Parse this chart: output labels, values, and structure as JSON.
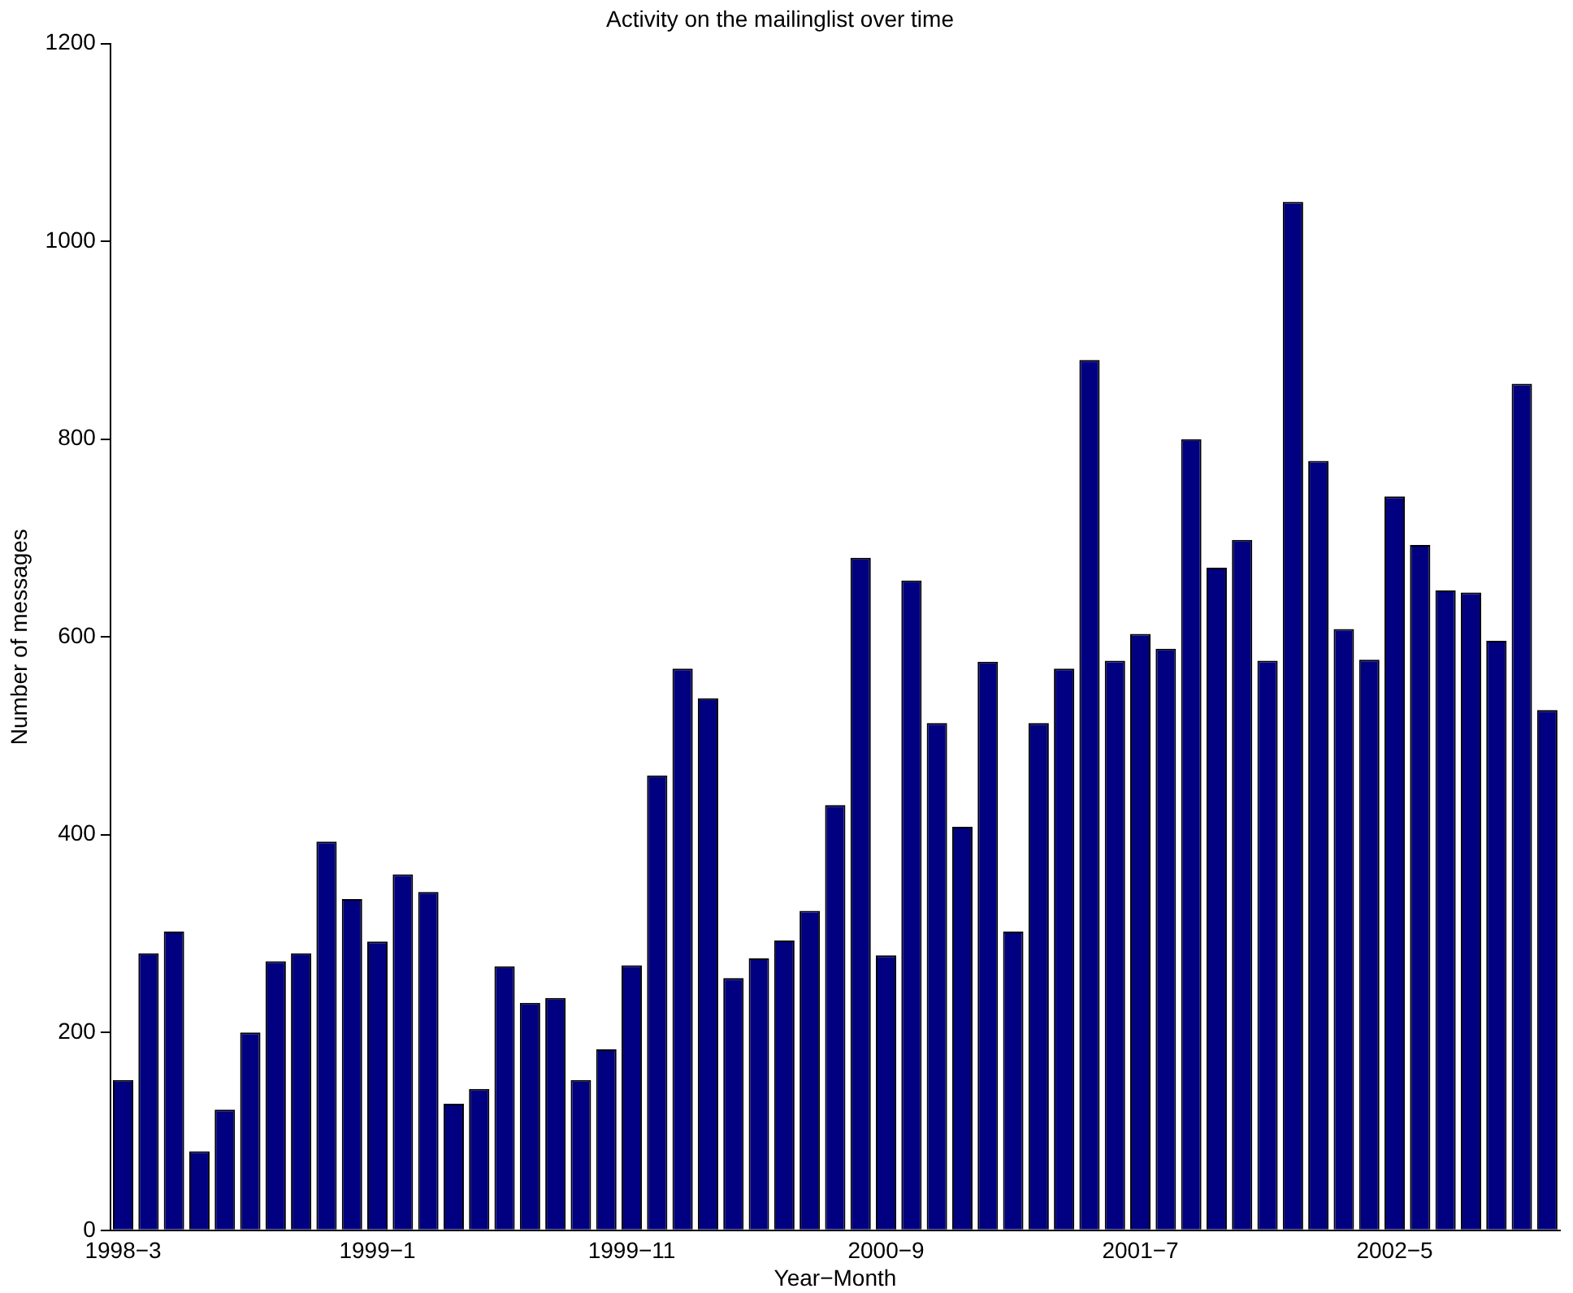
{
  "chart_data": {
    "type": "bar",
    "title": "Activity on the mailinglist over time",
    "xlabel": "Year−Month",
    "ylabel": "Number of messages",
    "categories": [
      "1998−3",
      null,
      null,
      null,
      null,
      null,
      null,
      null,
      null,
      null,
      "1999−1",
      null,
      null,
      null,
      null,
      null,
      null,
      null,
      null,
      null,
      "1999−11",
      null,
      null,
      null,
      null,
      null,
      null,
      null,
      null,
      null,
      "2000−9",
      null,
      null,
      null,
      null,
      null,
      null,
      null,
      null,
      null,
      "2001−7",
      null,
      null,
      null,
      null,
      null,
      null,
      null,
      null,
      null,
      "2002−5",
      null,
      null,
      null,
      null,
      null,
      null
    ],
    "values": [
      152,
      280,
      302,
      80,
      122,
      200,
      272,
      280,
      393,
      335,
      292,
      360,
      342,
      128,
      143,
      267,
      230,
      235,
      152,
      183,
      268,
      460,
      568,
      538,
      255,
      275,
      293,
      323,
      430,
      680,
      278,
      657,
      513,
      408,
      575,
      302,
      513,
      568,
      880,
      576,
      603,
      588,
      800,
      670,
      698,
      576,
      1040,
      778,
      608,
      577,
      742,
      693,
      647,
      645,
      596,
      856,
      526
    ],
    "color": "#000080",
    "ylim": [
      0,
      1200
    ],
    "yticks": [
      0,
      200,
      400,
      600,
      800,
      1000,
      1200
    ],
    "grid": false,
    "legend": false
  }
}
